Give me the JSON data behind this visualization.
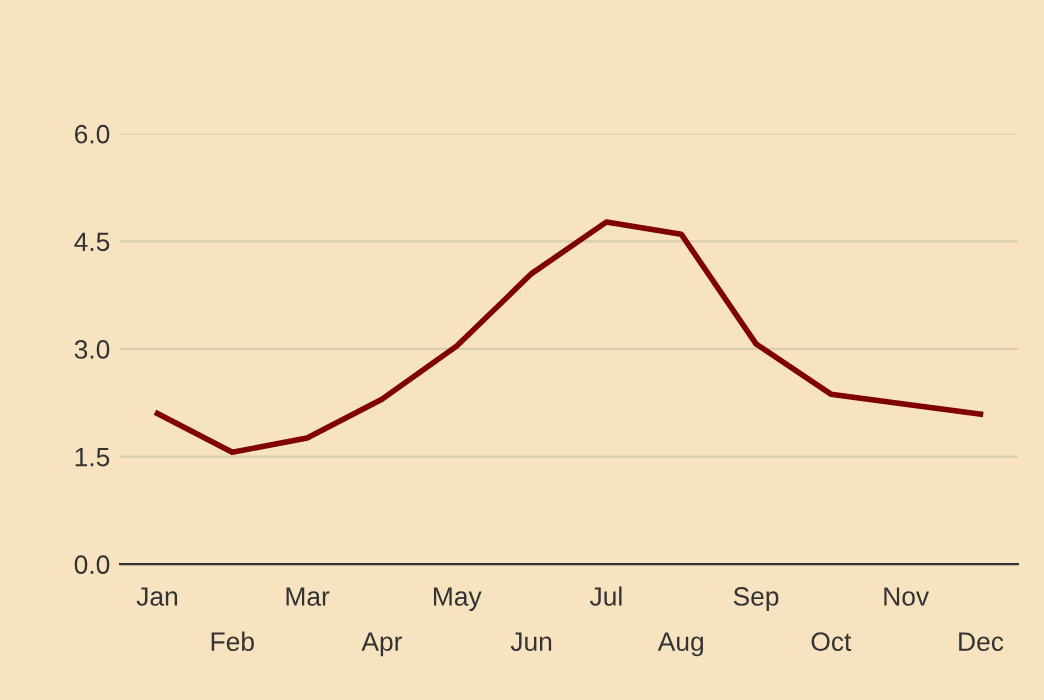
{
  "chart_data": {
    "type": "line",
    "categories": [
      "Jan",
      "Feb",
      "Mar",
      "Apr",
      "May",
      "Jun",
      "Jul",
      "Aug",
      "Sep",
      "Oct",
      "Nov",
      "Dec"
    ],
    "series": [
      {
        "color": "#800000",
        "values": [
          2.1,
          1.56,
          1.76,
          2.3,
          3.04,
          4.05,
          4.77,
          4.6,
          3.07,
          2.37,
          2.23,
          2.09
        ]
      }
    ],
    "ylim": [
      0,
      6
    ],
    "yticks": [
      {
        "value": 0,
        "label": "0.0"
      },
      {
        "value": 1.5,
        "label": "1.5"
      },
      {
        "value": 3,
        "label": "3.0"
      },
      {
        "value": 4.5,
        "label": "4.5"
      },
      {
        "value": 6,
        "label": "6.0"
      }
    ],
    "grid": "y",
    "marker": "none",
    "line_style": "solid"
  }
}
